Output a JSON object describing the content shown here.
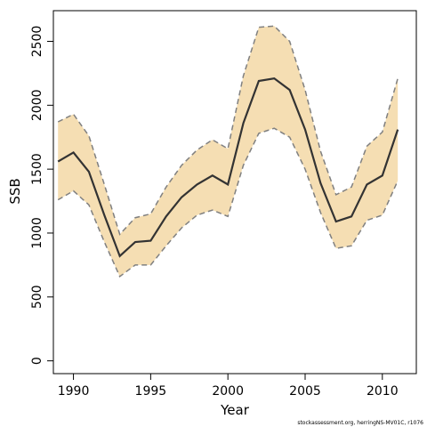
{
  "chart_data": {
    "type": "area",
    "title": "",
    "xlabel": "Year",
    "ylabel": "SSB",
    "xlim": [
      1988.7,
      2012.2
    ],
    "ylim": [
      -100,
      2740
    ],
    "x_ticks": [
      1990,
      1995,
      2000,
      2005,
      2010
    ],
    "y_ticks": [
      0,
      500,
      1000,
      1500,
      2000,
      2500
    ],
    "grid": false,
    "legend": "none",
    "colors": {
      "band": "#f5deb3",
      "line": "#333333",
      "bounds": "#808080"
    },
    "x": [
      1989,
      1990,
      1991,
      1992,
      1993,
      1994,
      1995,
      1996,
      1997,
      1998,
      1999,
      2000,
      2001,
      2002,
      2003,
      2004,
      2005,
      2006,
      2007,
      2008,
      2009,
      2010,
      2011
    ],
    "series": [
      {
        "role": "estimate",
        "values": [
          1560,
          1630,
          1480,
          1140,
          820,
          930,
          940,
          1130,
          1280,
          1380,
          1450,
          1380,
          1860,
          2190,
          2210,
          2120,
          1810,
          1390,
          1090,
          1130,
          1380,
          1450,
          1810
        ]
      },
      {
        "role": "upper",
        "values": [
          1870,
          1930,
          1760,
          1380,
          990,
          1120,
          1150,
          1360,
          1530,
          1650,
          1730,
          1660,
          2230,
          2610,
          2620,
          2500,
          2120,
          1640,
          1300,
          1360,
          1680,
          1790,
          2210
        ]
      },
      {
        "role": "lower",
        "values": [
          1260,
          1330,
          1220,
          930,
          660,
          750,
          750,
          900,
          1040,
          1140,
          1180,
          1130,
          1530,
          1780,
          1820,
          1750,
          1500,
          1160,
          880,
          900,
          1100,
          1140,
          1410
        ]
      }
    ]
  },
  "footer": {
    "text": "stockassessment.org, herringNS-MV01C, r1076"
  }
}
